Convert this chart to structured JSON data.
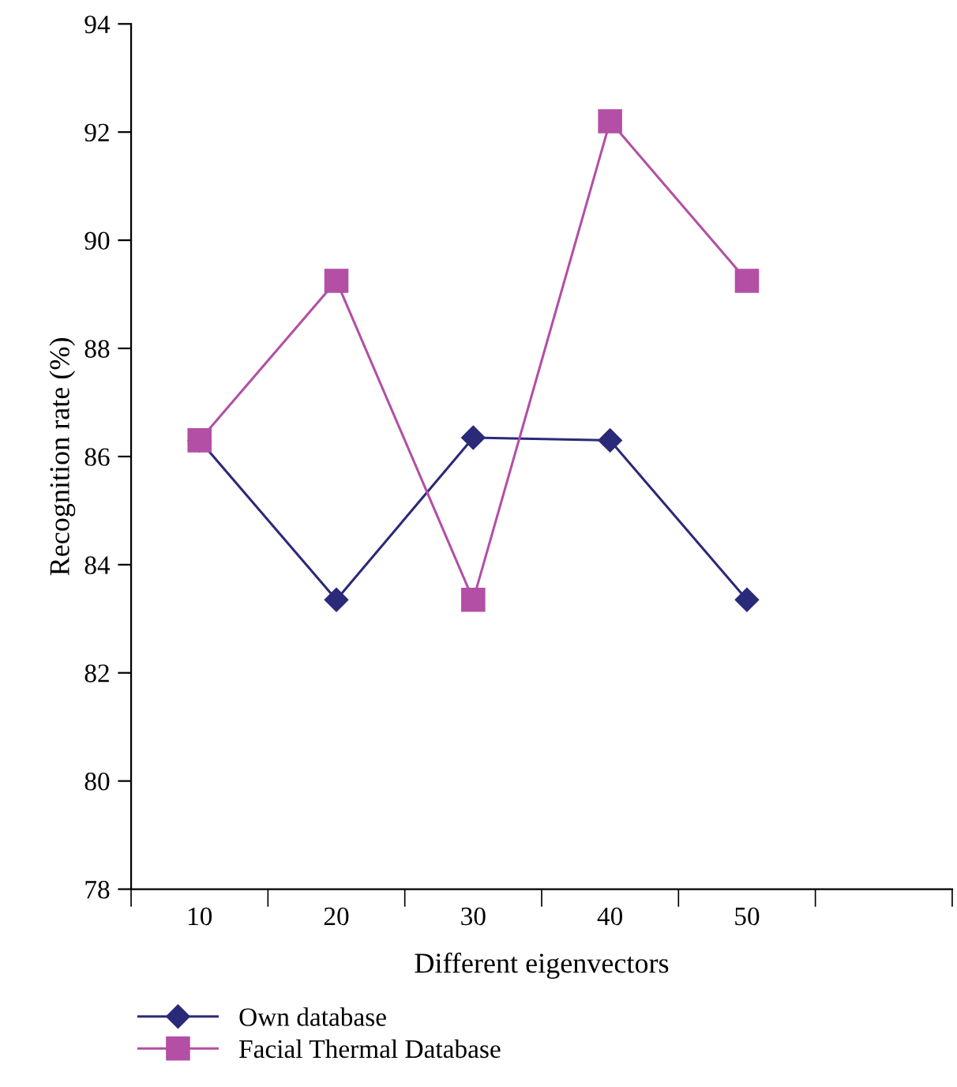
{
  "chart_data": {
    "type": "line",
    "xlabel": "Different eigenvectors",
    "ylabel": "Recognition rate (%)",
    "categories": [
      "10",
      "20",
      "30",
      "40",
      "50",
      null
    ],
    "series": [
      {
        "name": "Own database",
        "color": "#2b2a78",
        "marker": "diamond",
        "values": [
          86.3,
          83.35,
          86.35,
          86.3,
          83.35,
          null
        ]
      },
      {
        "name": "Facial Thermal Database",
        "color": "#b34fa5",
        "marker": "square",
        "values": [
          86.3,
          89.25,
          83.35,
          92.2,
          89.25,
          null
        ]
      }
    ],
    "ylim": [
      78,
      94
    ],
    "yticks": [
      78,
      80,
      82,
      84,
      86,
      88,
      90,
      92,
      94
    ],
    "grid": false,
    "legend": "bottom left",
    "line_style": "solid"
  }
}
